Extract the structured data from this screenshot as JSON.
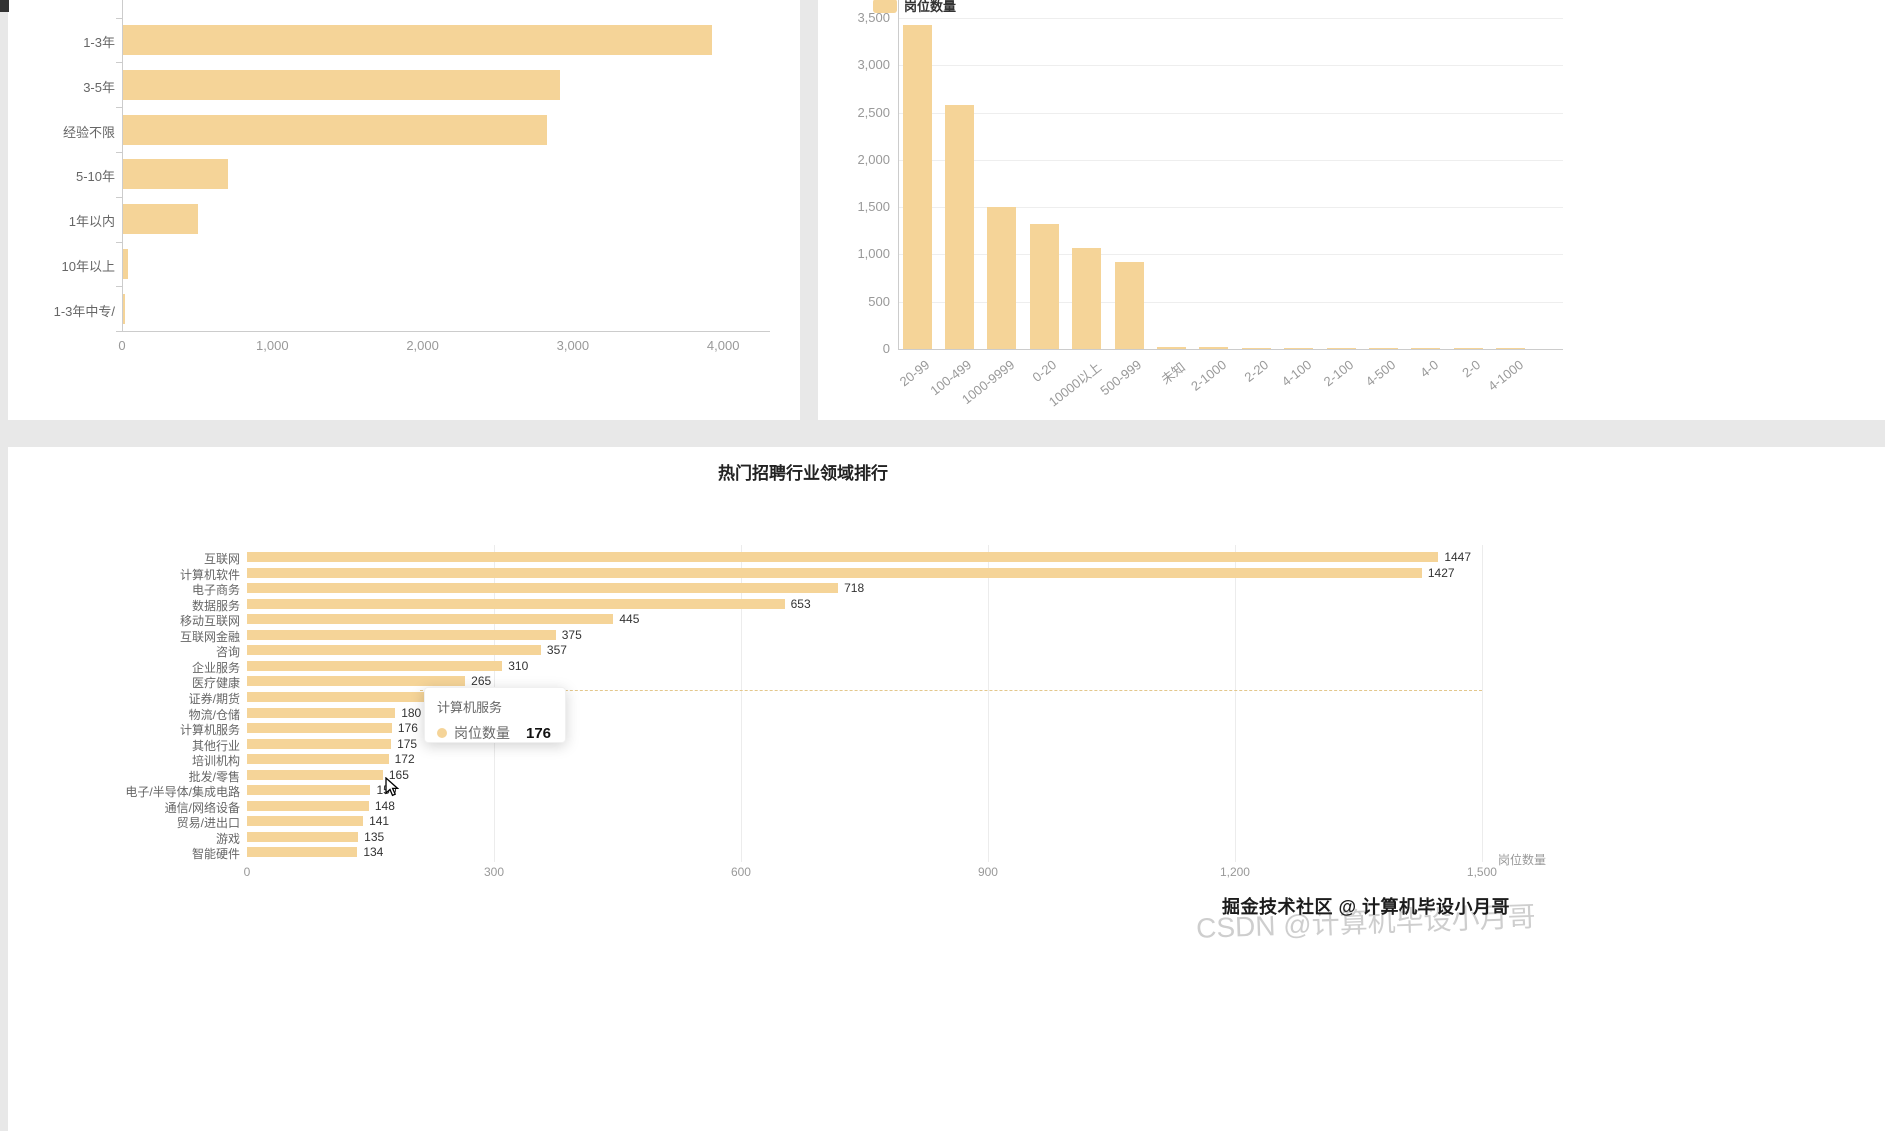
{
  "page": {
    "background": "#e8e8e8",
    "card_background": "#ffffff"
  },
  "colors": {
    "bar": "#f5d498",
    "grid_line": "#eeeeee",
    "axis_line": "#cccccc",
    "axis_label": "#999999",
    "category_label": "#666666",
    "value_label": "#333333"
  },
  "chart_data": [
    {
      "id": "experience-bar",
      "type": "bar",
      "orientation": "horizontal",
      "categories": [
        "1-3年",
        "3-5年",
        "经验不限",
        "5-10年",
        "1年以内",
        "10年以上",
        "1-3年中专/"
      ],
      "values": [
        3920,
        2910,
        2820,
        700,
        500,
        35,
        15
      ],
      "x_ticks": [
        {
          "v": 0,
          "label": "0"
        },
        {
          "v": 1000,
          "label": "1,000"
        },
        {
          "v": 2000,
          "label": "2,000"
        },
        {
          "v": 3000,
          "label": "3,000"
        },
        {
          "v": 4000,
          "label": "4,000"
        }
      ],
      "xlim": [
        0,
        4300
      ],
      "grid": false
    },
    {
      "id": "company-size-bar",
      "type": "bar",
      "orientation": "vertical",
      "legend": "岗位数量",
      "categories": [
        "20-99",
        "100-499",
        "1000-9999",
        "0-20",
        "10000以上",
        "500-999",
        "未知",
        "2-1000",
        "2-20",
        "4-100",
        "2-100",
        "4-500",
        "4-0",
        "2-0",
        "4-1000"
      ],
      "values": [
        3430,
        2580,
        1500,
        1320,
        1070,
        920,
        20,
        25,
        10,
        8,
        6,
        6,
        5,
        5,
        6
      ],
      "y_ticks": [
        {
          "v": 3500,
          "label": "3,500"
        },
        {
          "v": 3000,
          "label": "3,000"
        },
        {
          "v": 2500,
          "label": "2,500"
        },
        {
          "v": 2000,
          "label": "2,000"
        },
        {
          "v": 1500,
          "label": "1,500"
        },
        {
          "v": 1000,
          "label": "1,000"
        },
        {
          "v": 500,
          "label": "500"
        },
        {
          "v": 0,
          "label": "0"
        }
      ],
      "ylim": [
        0,
        3500
      ],
      "grid": true,
      "label_rotate_deg": -38
    },
    {
      "id": "industry-bar",
      "type": "bar",
      "orientation": "horizontal",
      "title": "热门招聘行业领域排行",
      "axis_name": "岗位数量",
      "categories": [
        "互联网",
        "计算机软件",
        "电子商务",
        "数据服务",
        "移动互联网",
        "互联网金融",
        "咨询",
        "企业服务",
        "医疗健康",
        "证券/期货",
        "物流/仓储",
        "计算机服务",
        "其他行业",
        "培训机构",
        "批发/零售",
        "电子/半导体/集成电路",
        "通信/网络设备",
        "贸易/进出口",
        "游戏",
        "智能硬件"
      ],
      "values": [
        1447,
        1427,
        718,
        653,
        445,
        375,
        357,
        310,
        265,
        240,
        180,
        176,
        175,
        172,
        165,
        150,
        148,
        141,
        135,
        134
      ],
      "value_labels": [
        "1447",
        "1427",
        "718",
        "653",
        "445",
        "375",
        "357",
        "310",
        "265",
        "",
        "180",
        "176",
        "175",
        "172",
        "165",
        "150",
        "148",
        "141",
        "135",
        "134"
      ],
      "x_ticks": [
        {
          "v": 0,
          "label": "0"
        },
        {
          "v": 300,
          "label": "300"
        },
        {
          "v": 600,
          "label": "600"
        },
        {
          "v": 900,
          "label": "900"
        },
        {
          "v": 1200,
          "label": "1,200"
        },
        {
          "v": 1500,
          "label": "1,500"
        }
      ],
      "xlim": [
        0,
        1500
      ],
      "grid": true
    }
  ],
  "tooltip": {
    "title": "计算机服务",
    "series_name": "岗位数量",
    "value": "176"
  },
  "watermarks": {
    "primary": "掘金技术社区 @ 计算机毕设小月哥",
    "ghost": "CSDN @计算机毕设小月哥"
  }
}
